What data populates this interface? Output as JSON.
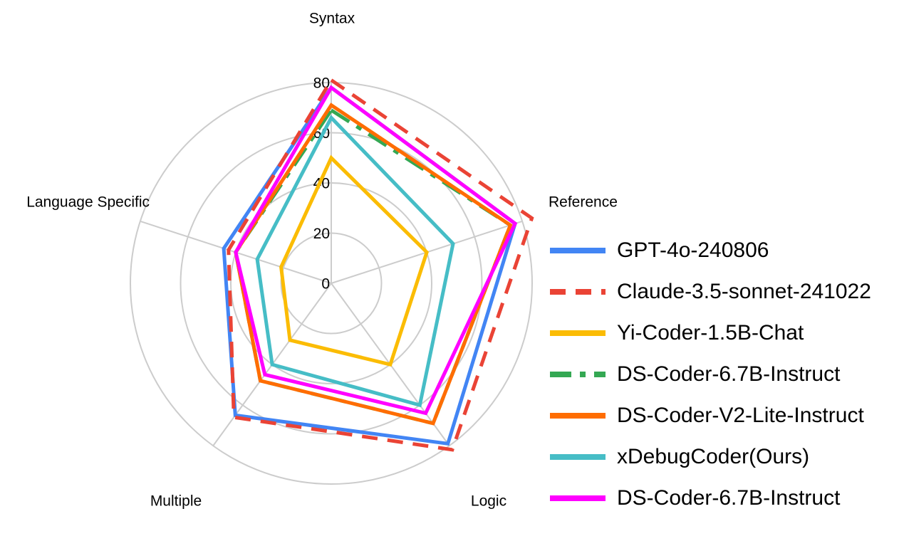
{
  "chart_data": {
    "type": "radar",
    "axes": [
      "Syntax",
      "Reference",
      "Logic",
      "Multiple",
      "Language Specific"
    ],
    "r_ticks": [
      0,
      20,
      40,
      60,
      80
    ],
    "r_max": 80,
    "grid": true,
    "legend_position": "right",
    "series": [
      {
        "name": "GPT-4o-240806",
        "values": [
          78,
          77,
          79,
          65,
          45
        ],
        "color": "#4285F4",
        "dash": "solid"
      },
      {
        "name": "Claude-3.5-sonnet-241022",
        "values": [
          81,
          84,
          82,
          66,
          43
        ],
        "color": "#EA4335",
        "dash": "dashed"
      },
      {
        "name": "Yi-Coder-1.5B-Chat",
        "values": [
          50,
          40,
          40,
          28,
          21
        ],
        "color": "#FBBC04",
        "dash": "solid"
      },
      {
        "name": "DS-Coder-6.7B-Instruct",
        "values": [
          69,
          75,
          69,
          48,
          40
        ],
        "color": "#34A853",
        "dash": "dashdot"
      },
      {
        "name": "DS-Coder-V2-Lite-Instruct",
        "values": [
          71,
          75,
          69,
          48,
          40
        ],
        "color": "#FF6D01",
        "dash": "solid"
      },
      {
        "name": "xDebugCoder(Ours)",
        "values": [
          66,
          51,
          60,
          40,
          31
        ],
        "color": "#46BDC6",
        "dash": "solid"
      },
      {
        "name": "DS-Coder-6.7B-Instruct",
        "values": [
          78,
          77,
          64,
          45,
          40
        ],
        "color": "#FF00FF",
        "dash": "solid"
      }
    ]
  }
}
